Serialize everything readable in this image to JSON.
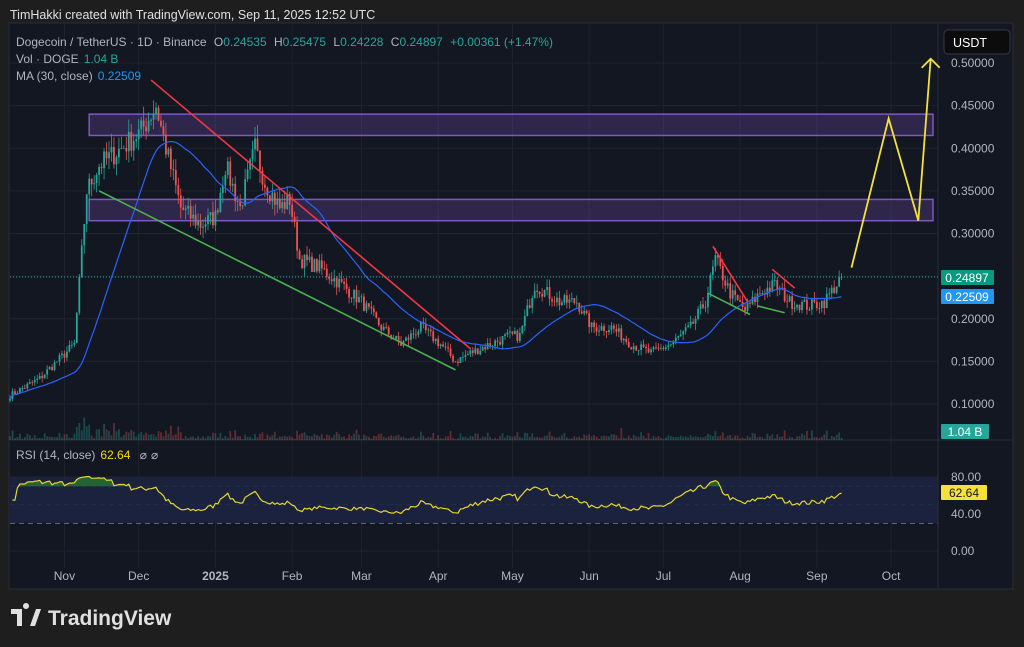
{
  "header": {
    "caption": "TimHakki created with TradingView.com, Sep 11, 2025 12:52 UTC"
  },
  "legend": {
    "symbol": "Dogecoin / TetherUS · 1D · Binance",
    "o_label": "O",
    "o": "0.24535",
    "h_label": "H",
    "h": "0.25475",
    "l_label": "L",
    "l": "0.24228",
    "c_label": "C",
    "c": "0.24897",
    "change": "+0.00361 (+1.47%)",
    "vol_label": "Vol · DOGE",
    "vol": "1.04 B",
    "ma_label": "MA (30, close)",
    "ma": "0.22509",
    "rsi_label": "RSI (14, close)",
    "rsi": "62.64",
    "rsi_extra1": "⌀",
    "rsi_extra2": "⌀"
  },
  "currency_button": "USDT",
  "price_labels": {
    "last": "0.24897",
    "ma": "0.22509",
    "volume": "1.04 B",
    "rsi": "62.64"
  },
  "branding": {
    "logo_text": "TradingView"
  },
  "colors": {
    "up": "#26a69a",
    "down": "#ef5350",
    "ma": "#2962ff",
    "rsi": "#e6d62f",
    "zone": "#7e57c2",
    "trend_down": "#f23645",
    "trend_up": "#4caf50",
    "projection": "#f5e13b",
    "ma_label": "#2196f3"
  },
  "chart_data": {
    "type": "candlestick",
    "title": "Dogecoin / TetherUS · 1D · Binance",
    "start_date": "2024-10-10",
    "close_keypoints_day_price": [
      [
        0,
        0.11
      ],
      [
        12,
        0.13
      ],
      [
        26,
        0.17
      ],
      [
        31,
        0.35
      ],
      [
        36,
        0.38
      ],
      [
        45,
        0.4
      ],
      [
        53,
        0.42
      ],
      [
        59,
        0.45
      ],
      [
        63,
        0.4
      ],
      [
        69,
        0.33
      ],
      [
        77,
        0.31
      ],
      [
        83,
        0.32
      ],
      [
        87,
        0.38
      ],
      [
        93,
        0.33
      ],
      [
        99,
        0.4
      ],
      [
        103,
        0.36
      ],
      [
        109,
        0.33
      ],
      [
        113,
        0.34
      ],
      [
        117,
        0.27
      ],
      [
        125,
        0.26
      ],
      [
        134,
        0.24
      ],
      [
        142,
        0.22
      ],
      [
        150,
        0.19
      ],
      [
        158,
        0.17
      ],
      [
        166,
        0.19
      ],
      [
        174,
        0.17
      ],
      [
        180,
        0.15
      ],
      [
        186,
        0.16
      ],
      [
        194,
        0.17
      ],
      [
        202,
        0.18
      ],
      [
        206,
        0.18
      ],
      [
        212,
        0.24
      ],
      [
        222,
        0.22
      ],
      [
        229,
        0.22
      ],
      [
        235,
        0.19
      ],
      [
        243,
        0.19
      ],
      [
        251,
        0.17
      ],
      [
        259,
        0.16
      ],
      [
        267,
        0.17
      ],
      [
        275,
        0.19
      ],
      [
        281,
        0.22
      ],
      [
        285,
        0.27
      ],
      [
        291,
        0.23
      ],
      [
        297,
        0.21
      ],
      [
        303,
        0.23
      ],
      [
        309,
        0.24
      ],
      [
        315,
        0.22
      ],
      [
        323,
        0.215
      ],
      [
        329,
        0.22
      ],
      [
        336,
        0.24897
      ]
    ],
    "ma_period": 30,
    "rsi_period": 14,
    "y_axis": {
      "ticks": [
        "0.50000",
        "0.45000",
        "0.40000",
        "0.35000",
        "0.30000",
        "0.20000",
        "0.15000",
        "0.10000"
      ],
      "tick_values": [
        0.5,
        0.45,
        0.4,
        0.35,
        0.3,
        0.2,
        0.15,
        0.1
      ],
      "range": [
        0.075,
        0.53
      ]
    },
    "rsi_axis": {
      "ticks": [
        "80.00",
        "40.00",
        "0.00"
      ],
      "tick_values": [
        80,
        40,
        0
      ],
      "bands": [
        70,
        50,
        30
      ]
    },
    "x_axis": {
      "ticks": [
        "Nov",
        "Dec",
        "2025",
        "Feb",
        "Mar",
        "Apr",
        "May",
        "Jun",
        "Jul",
        "Aug",
        "Sep",
        "Oct"
      ],
      "tick_days": [
        22,
        52,
        83,
        114,
        142,
        173,
        203,
        234,
        264,
        295,
        326,
        356
      ]
    },
    "zones": [
      {
        "from": 0.415,
        "to": 0.44
      },
      {
        "from": 0.315,
        "to": 0.34
      }
    ],
    "trendlines": [
      {
        "name": "resistance",
        "points": [
          [
            57,
            0.48
          ],
          [
            186,
            0.165
          ]
        ]
      },
      {
        "name": "support",
        "points": [
          [
            36,
            0.35
          ],
          [
            180,
            0.14
          ]
        ]
      },
      {
        "name": "flag-res-1",
        "points": [
          [
            284,
            0.285
          ],
          [
            298,
            0.22
          ]
        ]
      },
      {
        "name": "flag-sup-1",
        "points": [
          [
            282,
            0.23
          ],
          [
            299,
            0.205
          ]
        ]
      },
      {
        "name": "flag-res-2",
        "points": [
          [
            308,
            0.258
          ],
          [
            317,
            0.236
          ]
        ]
      },
      {
        "name": "flag-sup-2",
        "points": [
          [
            302,
            0.215
          ],
          [
            313,
            0.207
          ]
        ]
      }
    ],
    "projection": [
      [
        340,
        0.26
      ],
      [
        355,
        0.435
      ],
      [
        367,
        0.315
      ],
      [
        372,
        0.505
      ]
    ]
  }
}
